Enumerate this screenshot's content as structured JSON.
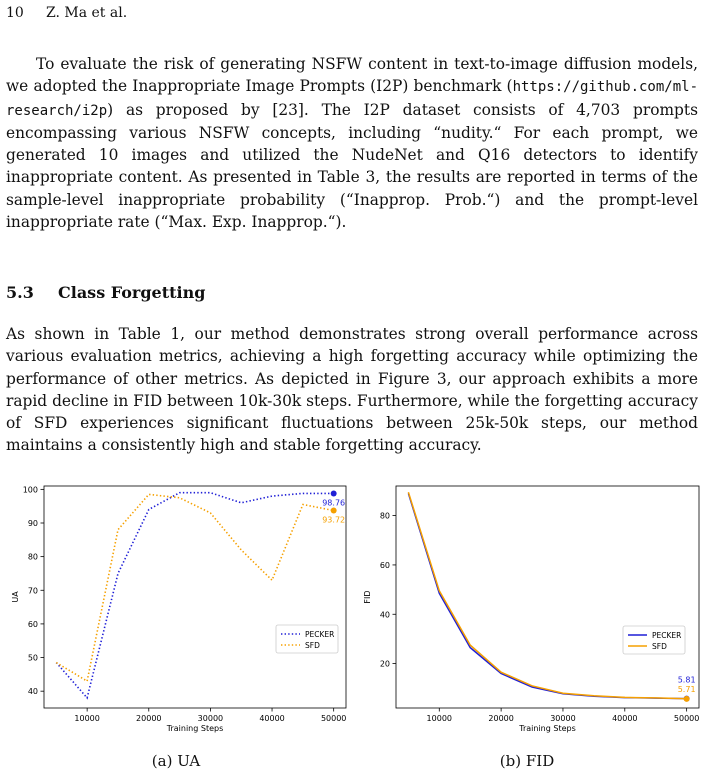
{
  "header": {
    "page_number": "10",
    "authors": "Z. Ma et al."
  },
  "para1": {
    "a": "To evaluate the risk of generating NSFW content in text-to-image diffusion models, we adopted the Inappropriate Image Prompts (I2P) benchmark (",
    "url": "https://github.com/ml-research/i2p",
    "b": ") as proposed by [23]. The I2P dataset consists of 4,703 prompts encompassing various NSFW concepts, including “nudity.“ For each prompt, we generated 10 images and utilized the NudeNet and Q16 detectors to identify inappropriate content. As presented in Table 3, the results are reported in terms of the sample-level inappropriate probability (“Inapprop. Prob.“) and the prompt-level inappropriate rate (“Max. Exp. Inapprop.“)."
  },
  "section": {
    "number": "5.3",
    "title": "Class Forgetting"
  },
  "para2": "As shown in Table 1, our method demonstrates strong overall performance across various evaluation metrics, achieving a high forgetting accuracy while optimizing the performance of other metrics. As depicted in Figure 3, our approach exhibits a more rapid decline in FID between 10k-30k steps. Furthermore, while the forgetting accuracy of SFD experiences significant fluctuations between 25k-50k steps, our method maintains a consistently high and stable forgetting accuracy.",
  "colors": {
    "pecker": "#1f1fd6",
    "sfd": "#f5a000"
  },
  "chart_data": [
    {
      "type": "line",
      "xlabel": "Training Steps",
      "ylabel": "UA",
      "xlim": [
        3000,
        52000
      ],
      "ylim": [
        35,
        101
      ],
      "xticks": [
        10000,
        20000,
        30000,
        40000,
        50000
      ],
      "yticks": [
        40,
        50,
        60,
        70,
        80,
        90,
        100
      ],
      "legend": "center-right",
      "line_style": "dotted",
      "x": [
        5000,
        10000,
        15000,
        20000,
        25000,
        30000,
        35000,
        40000,
        45000,
        50000
      ],
      "series": [
        {
          "name": "PECKER",
          "values": [
            48.5,
            38,
            75,
            94,
            99,
            99,
            96,
            98,
            98.8,
            98.76
          ],
          "end_label": "98.76"
        },
        {
          "name": "SFD",
          "values": [
            48.5,
            43,
            88,
            98.5,
            97.5,
            93,
            82,
            73,
            95.5,
            93.72
          ],
          "end_label": "93.72"
        }
      ],
      "caption": "(a) UA"
    },
    {
      "type": "line",
      "xlabel": "Training Steps",
      "ylabel": "FID",
      "xlim": [
        3000,
        52000
      ],
      "ylim": [
        2,
        92
      ],
      "xticks": [
        10000,
        20000,
        30000,
        40000,
        50000
      ],
      "yticks": [
        20,
        40,
        60,
        80
      ],
      "legend": "center-right",
      "line_style": "solid",
      "x": [
        5000,
        10000,
        15000,
        20000,
        25000,
        30000,
        35000,
        40000,
        45000,
        50000
      ],
      "series": [
        {
          "name": "PECKER",
          "values": [
            89,
            48.5,
            26.5,
            16,
            10.5,
            7.8,
            6.8,
            6.2,
            6.0,
            5.81
          ],
          "end_label": "5.81"
        },
        {
          "name": "SFD",
          "values": [
            89.5,
            49.5,
            27.5,
            16.5,
            11,
            8,
            7,
            6.3,
            6.1,
            5.71
          ],
          "end_label": "5.71"
        }
      ],
      "caption": "(b) FID"
    }
  ]
}
